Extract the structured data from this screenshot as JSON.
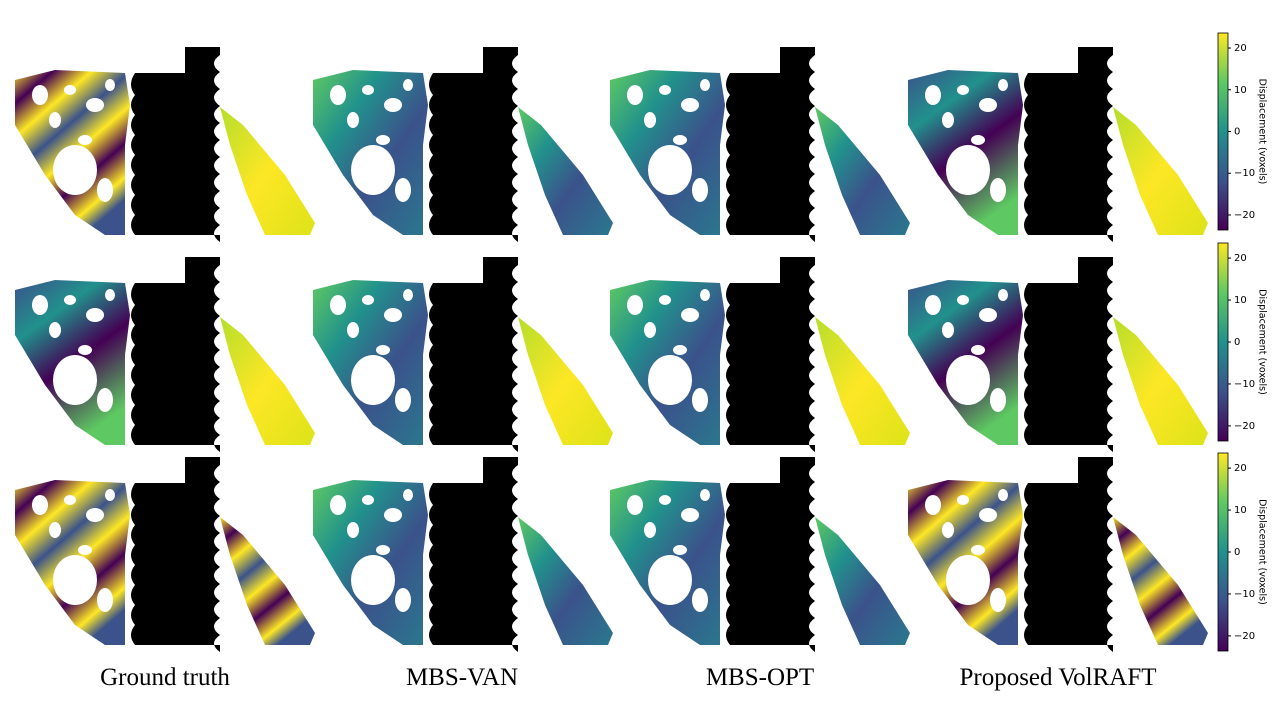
{
  "columns": [
    "Ground truth",
    "MBS-VAN",
    "MBS-OPT",
    "Proposed VolRAFT"
  ],
  "colorbars": [
    {
      "label": "Displacement (voxels)",
      "lim": [
        -23.6,
        23.6
      ],
      "ticks": [
        20,
        10,
        0,
        {
          "value": -10,
          "label": "−10"
        },
        {
          "value": -20,
          "label": "−20"
        }
      ]
    },
    {
      "label": "Displacement (voxels)",
      "lim": [
        -23.6,
        23.6
      ],
      "ticks": [
        20,
        10,
        0,
        {
          "value": -10,
          "label": "−10"
        },
        {
          "value": -20,
          "label": "−20"
        }
      ]
    },
    {
      "label": "Displacement (voxels)",
      "lim": [
        -23.6,
        23.6
      ],
      "ticks": [
        20,
        10,
        0,
        {
          "value": -10,
          "label": "−10"
        },
        {
          "value": -20,
          "label": "−20"
        }
      ]
    }
  ]
}
